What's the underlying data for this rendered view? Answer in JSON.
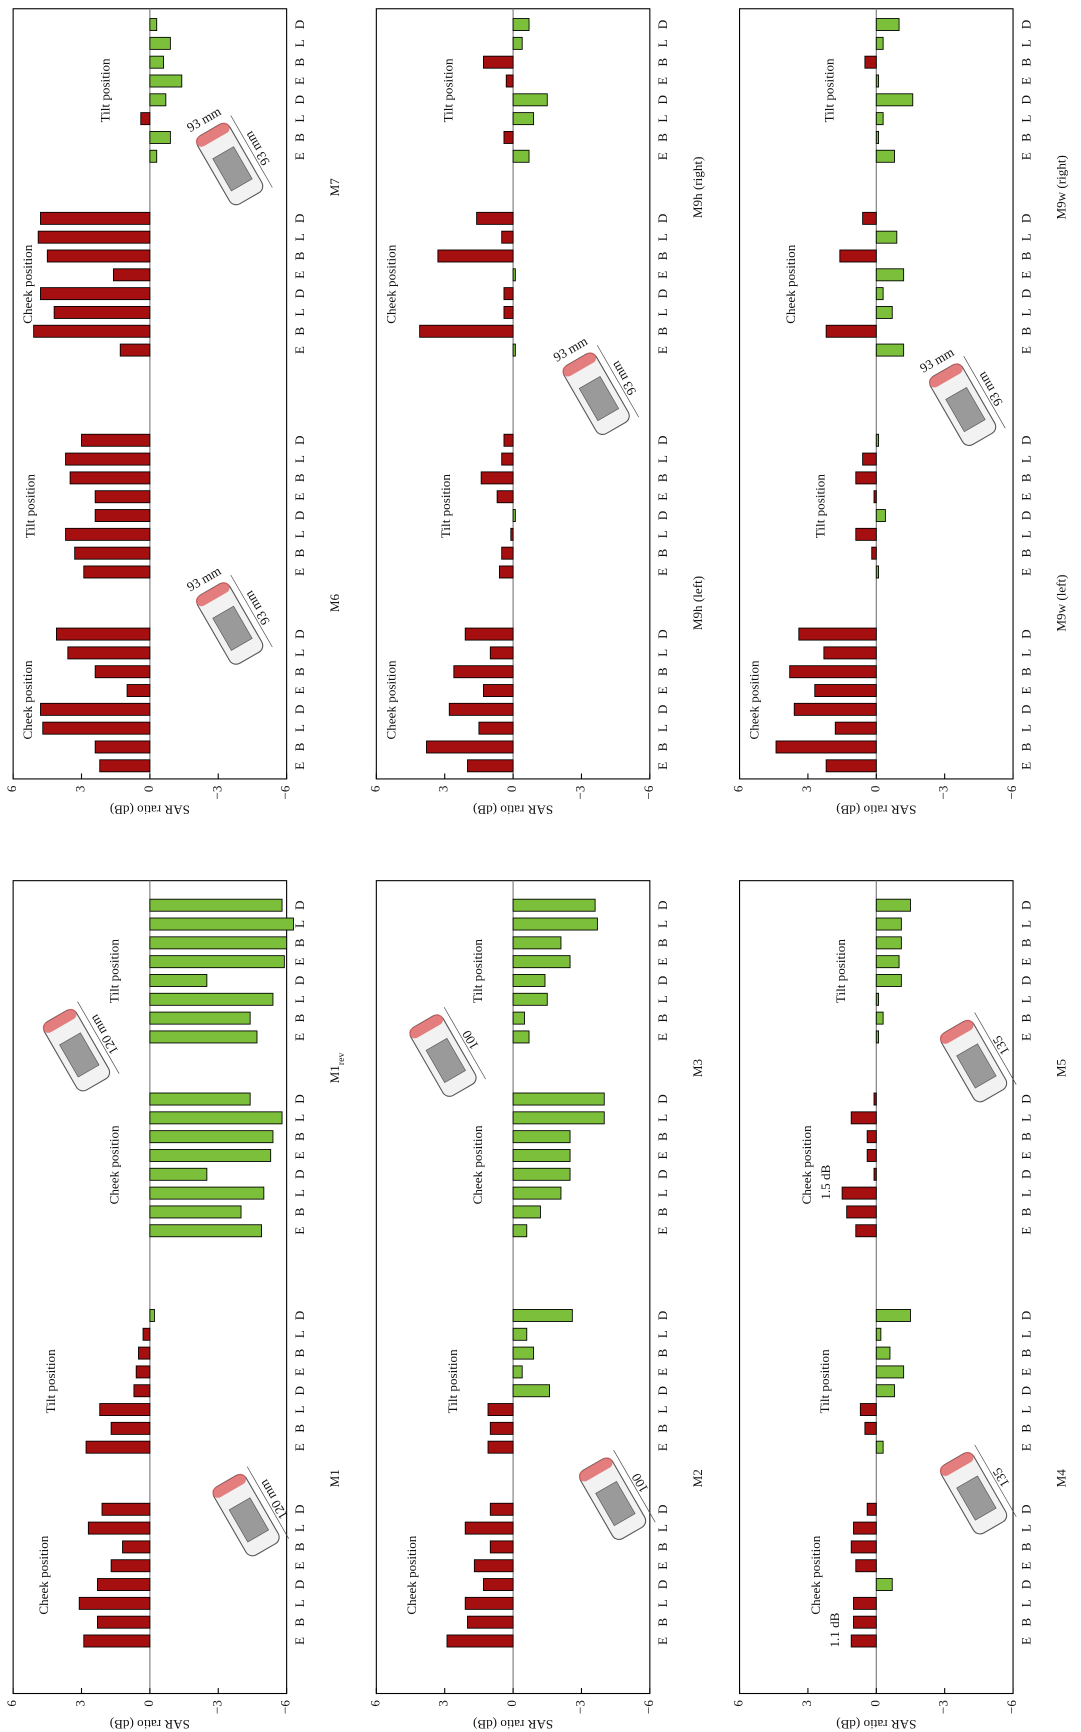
{
  "chart_data": [
    {
      "type": "bar",
      "name": "M1",
      "categories": [
        "E",
        "B",
        "L",
        "D",
        "E",
        "B",
        "L",
        "D",
        "E",
        "B",
        "L",
        "D",
        "E",
        "B",
        "L",
        "D"
      ],
      "groups": [
        "Cheek position",
        "Tilt position"
      ],
      "values": [
        2.9,
        2.3,
        3.1,
        2.3,
        1.7,
        1.2,
        2.7,
        2.1,
        2.8,
        1.7,
        2.2,
        0.7,
        0.6,
        0.5,
        0.3,
        -0.2
      ],
      "positive_color": "#a50f0f",
      "negative_color": "#7cbf3a",
      "ylim": [
        -6,
        6
      ],
      "yticks": [
        6,
        3,
        0,
        {
          "value": -3,
          "label": "−3"
        },
        {
          "value": -6,
          "label": "−6"
        }
      ],
      "ylabel": "SAR ratio (dB)",
      "phone_labels": [
        "120 mm"
      ]
    },
    {
      "type": "bar",
      "name": "M1",
      "name_sub": "rev",
      "categories": [
        "E",
        "B",
        "L",
        "D",
        "E",
        "B",
        "L",
        "D",
        "E",
        "B",
        "L",
        "D",
        "E",
        "B",
        "L",
        "D"
      ],
      "groups": [
        "Cheek position",
        "Tilt position"
      ],
      "values": [
        -4.9,
        -4.0,
        -5.0,
        -2.5,
        -5.3,
        -5.4,
        -5.8,
        -4.4,
        -4.7,
        -4.4,
        -5.4,
        -2.5,
        -5.9,
        -6.0,
        -6.3,
        -5.8
      ],
      "positive_color": "#a50f0f",
      "negative_color": "#7cbf3a",
      "ylim": [
        -6,
        6
      ],
      "phone_labels": [
        "120 mm"
      ]
    },
    {
      "type": "bar",
      "name": "M2",
      "categories": [
        "E",
        "B",
        "L",
        "D",
        "E",
        "B",
        "L",
        "D",
        "E",
        "B",
        "L",
        "D",
        "E",
        "B",
        "L",
        "D"
      ],
      "groups": [
        "Cheek position",
        "Tilt position"
      ],
      "values": [
        2.9,
        2.0,
        2.1,
        1.3,
        1.7,
        1.0,
        2.1,
        1.0,
        1.1,
        1.0,
        1.1,
        -1.6,
        -0.4,
        -0.9,
        -0.6,
        -2.6
      ],
      "positive_color": "#a50f0f",
      "negative_color": "#7cbf3a",
      "ylim": [
        -6,
        6
      ],
      "yticks": [
        6,
        3,
        0,
        {
          "value": -3,
          "label": "−3"
        },
        {
          "value": -6,
          "label": "−6"
        }
      ],
      "ylabel": "SAR ratio (dB)",
      "phone_labels": [
        "100"
      ]
    },
    {
      "type": "bar",
      "name": "M3",
      "categories": [
        "E",
        "B",
        "L",
        "D",
        "E",
        "B",
        "L",
        "D",
        "E",
        "B",
        "L",
        "D",
        "E",
        "B",
        "L",
        "D"
      ],
      "groups": [
        "Cheek position",
        "Tilt position"
      ],
      "values": [
        -0.6,
        -1.2,
        -2.1,
        -2.5,
        -2.5,
        -2.5,
        -4.0,
        -4.0,
        -0.7,
        -0.5,
        -1.5,
        -1.4,
        -2.5,
        -2.1,
        -3.7,
        -3.6
      ],
      "positive_color": "#a50f0f",
      "negative_color": "#7cbf3a",
      "ylim": [
        -6,
        6
      ],
      "phone_labels": [
        "100"
      ]
    },
    {
      "type": "bar",
      "name": "M4",
      "categories": [
        "E",
        "B",
        "L",
        "D",
        "E",
        "B",
        "L",
        "D",
        "E",
        "B",
        "L",
        "D",
        "E",
        "B",
        "L",
        "D"
      ],
      "groups": [
        "Cheek position",
        "Tilt position"
      ],
      "values": [
        1.1,
        1.0,
        1.0,
        -0.7,
        0.9,
        1.1,
        1.0,
        0.4,
        -0.3,
        0.5,
        0.7,
        -0.8,
        -1.2,
        -0.6,
        -0.2,
        -1.5
      ],
      "positive_color": "#a50f0f",
      "negative_color": "#7cbf3a",
      "ylim": [
        -6,
        6
      ],
      "yticks": [
        6,
        3,
        0,
        {
          "value": -3,
          "label": "−3"
        },
        {
          "value": -6,
          "label": "−6"
        }
      ],
      "ylabel": "SAR ratio (dB)",
      "phone_labels": [
        "135"
      ],
      "annotations": [
        {
          "text": "1.1 dB",
          "index": 0
        }
      ]
    },
    {
      "type": "bar",
      "name": "M5",
      "categories": [
        "E",
        "B",
        "L",
        "D",
        "E",
        "B",
        "L",
        "D",
        "E",
        "B",
        "L",
        "D",
        "E",
        "B",
        "L",
        "D"
      ],
      "groups": [
        "Cheek position",
        "Tilt position"
      ],
      "values": [
        0.9,
        1.3,
        1.5,
        0.1,
        0.4,
        0.4,
        1.1,
        0.1,
        -0.1,
        -0.3,
        -0.1,
        -1.1,
        -1.0,
        -1.1,
        -1.1,
        -1.5
      ],
      "positive_color": "#a50f0f",
      "negative_color": "#7cbf3a",
      "ylim": [
        -6,
        6
      ],
      "phone_labels": [
        "135"
      ],
      "annotations": [
        {
          "text": "1.5 dB",
          "index": 2
        }
      ]
    },
    {
      "type": "bar",
      "name": "M6",
      "categories": [
        "E",
        "B",
        "L",
        "D",
        "E",
        "B",
        "L",
        "D",
        "E",
        "B",
        "L",
        "D",
        "E",
        "B",
        "L",
        "D"
      ],
      "groups": [
        "Cheek position",
        "Tilt position"
      ],
      "values": [
        2.2,
        2.4,
        4.7,
        4.8,
        1.0,
        2.4,
        3.6,
        4.1,
        2.9,
        3.3,
        3.7,
        2.4,
        2.4,
        3.5,
        3.7,
        3.0
      ],
      "positive_color": "#a50f0f",
      "negative_color": "#7cbf3a",
      "ylim": [
        -6,
        6
      ],
      "yticks": [
        6,
        3,
        0,
        {
          "value": -3,
          "label": "−3"
        },
        {
          "value": -6,
          "label": "−6"
        }
      ],
      "ylabel": "SAR ratio (dB)",
      "phone_labels": [
        "93 mm",
        "93 mm"
      ]
    },
    {
      "type": "bar",
      "name": "M7",
      "categories": [
        "E",
        "B",
        "L",
        "D",
        "E",
        "B",
        "L",
        "D",
        "E",
        "B",
        "L",
        "D",
        "E",
        "B",
        "L",
        "D"
      ],
      "groups": [
        "Cheek position",
        "Tilt position"
      ],
      "values": [
        1.3,
        5.1,
        4.2,
        4.8,
        1.6,
        4.5,
        4.9,
        4.8,
        -0.3,
        -0.9,
        0.4,
        -0.7,
        -1.4,
        -0.6,
        -0.9,
        -0.3
      ],
      "positive_color": "#a50f0f",
      "negative_color": "#7cbf3a",
      "ylim": [
        -6,
        6
      ],
      "phone_labels": [
        "93 mm",
        "93 mm"
      ]
    },
    {
      "type": "bar",
      "name": "M9h (left)",
      "categories": [
        "E",
        "B",
        "L",
        "D",
        "E",
        "B",
        "L",
        "D",
        "E",
        "B",
        "L",
        "D",
        "E",
        "B",
        "L",
        "D"
      ],
      "groups": [
        "Cheek position",
        "Tilt position"
      ],
      "values": [
        2.0,
        3.8,
        1.5,
        2.8,
        1.3,
        2.6,
        1.0,
        2.1,
        0.6,
        0.5,
        0.1,
        -0.1,
        0.7,
        1.4,
        0.5,
        0.4
      ],
      "positive_color": "#a50f0f",
      "negative_color": "#7cbf3a",
      "ylim": [
        -6,
        6
      ],
      "yticks": [
        6,
        3,
        0,
        {
          "value": -3,
          "label": "−3"
        },
        {
          "value": -6,
          "label": "−6"
        }
      ],
      "ylabel": "SAR ratio (dB)"
    },
    {
      "type": "bar",
      "name": "M9h (right)",
      "categories": [
        "E",
        "B",
        "L",
        "D",
        "E",
        "B",
        "L",
        "D",
        "E",
        "B",
        "L",
        "D",
        "E",
        "B",
        "L",
        "D"
      ],
      "groups": [
        "Cheek position",
        "Tilt position"
      ],
      "values": [
        -0.1,
        4.1,
        0.4,
        0.4,
        -0.1,
        3.3,
        0.5,
        1.6,
        -0.7,
        0.4,
        -0.9,
        -1.5,
        0.3,
        1.3,
        -0.4,
        -0.7
      ],
      "positive_color": "#a50f0f",
      "negative_color": "#7cbf3a",
      "ylim": [
        -6,
        6
      ],
      "phone_labels": [
        "93 mm",
        "93 mm"
      ]
    },
    {
      "type": "bar",
      "name": "M9w (left)",
      "categories": [
        "E",
        "B",
        "L",
        "D",
        "E",
        "B",
        "L",
        "D",
        "E",
        "B",
        "L",
        "D",
        "E",
        "B",
        "L",
        "D"
      ],
      "groups": [
        "Cheek position",
        "Tilt position"
      ],
      "values": [
        2.2,
        4.4,
        1.8,
        3.6,
        2.7,
        3.8,
        2.3,
        3.4,
        -0.1,
        0.2,
        0.9,
        -0.4,
        0.1,
        0.9,
        0.6,
        -0.1
      ],
      "positive_color": "#a50f0f",
      "negative_color": "#7cbf3a",
      "ylim": [
        -6,
        6
      ],
      "yticks": [
        6,
        3,
        0,
        {
          "value": -3,
          "label": "−3"
        },
        {
          "value": -6,
          "label": "−6"
        }
      ],
      "ylabel": "SAR ratio (dB)"
    },
    {
      "type": "bar",
      "name": "M9w (right)",
      "categories": [
        "E",
        "B",
        "L",
        "D",
        "E",
        "B",
        "L",
        "D",
        "E",
        "B",
        "L",
        "D",
        "E",
        "B",
        "L",
        "D"
      ],
      "groups": [
        "Cheek position",
        "Tilt position"
      ],
      "values": [
        -1.2,
        2.2,
        -0.7,
        -0.3,
        -1.2,
        1.6,
        -0.9,
        0.6,
        -0.8,
        -0.1,
        -0.3,
        -1.6,
        -0.1,
        0.5,
        -0.3,
        -1.0
      ],
      "positive_color": "#a50f0f",
      "negative_color": "#7cbf3a",
      "ylim": [
        -6,
        6
      ],
      "phone_labels": [
        "93 mm",
        "93 mm"
      ]
    }
  ]
}
